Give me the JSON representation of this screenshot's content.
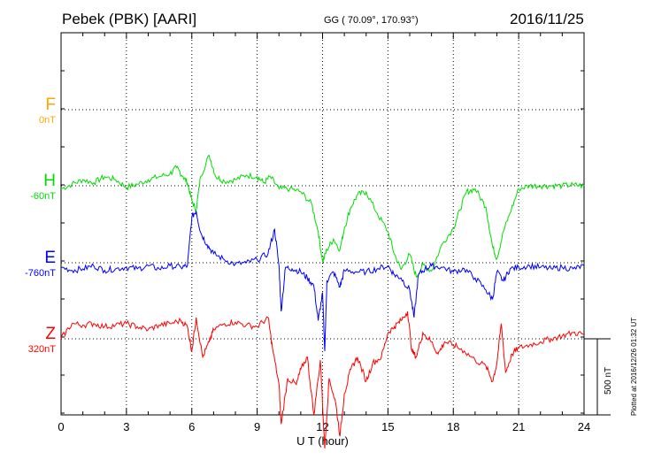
{
  "header": {
    "title": "Pebek (PBK)  [AARI]",
    "coords": "GG ( 70.09°, 170.93°)",
    "date": "2016/11/25"
  },
  "plotted": "Plotted at 2016/12/26 01:32 UT",
  "scale": {
    "label": "500 nT",
    "value": 500
  },
  "chart_data": {
    "type": "line",
    "xlabel": "U T (hour)",
    "xlim": [
      0,
      24
    ],
    "xticks": [
      "0",
      "3",
      "6",
      "9",
      "12",
      "15",
      "18",
      "21",
      "24"
    ],
    "grid": true,
    "series": [
      {
        "name": "F",
        "offset": "0nT",
        "color": "#ffa500",
        "values": []
      },
      {
        "name": "H",
        "offset": "-60nT",
        "color": "#00dd00",
        "values": [
          [
            0,
            -20
          ],
          [
            0.5,
            10
          ],
          [
            1,
            40
          ],
          [
            1.5,
            20
          ],
          [
            2,
            60
          ],
          [
            2.5,
            40
          ],
          [
            3,
            -10
          ],
          [
            3.5,
            10
          ],
          [
            4,
            40
          ],
          [
            4.5,
            60
          ],
          [
            5,
            80
          ],
          [
            5.3,
            120
          ],
          [
            5.6,
            60
          ],
          [
            5.8,
            20
          ],
          [
            6,
            -100
          ],
          [
            6.2,
            -160
          ],
          [
            6.4,
            60
          ],
          [
            6.8,
            200
          ],
          [
            7.1,
            60
          ],
          [
            7.5,
            30
          ],
          [
            8,
            40
          ],
          [
            8.5,
            70
          ],
          [
            9,
            60
          ],
          [
            9.3,
            20
          ],
          [
            9.6,
            60
          ],
          [
            10,
            -20
          ],
          [
            10.5,
            -20
          ],
          [
            11,
            -40
          ],
          [
            11.5,
            -120
          ],
          [
            11.8,
            -300
          ],
          [
            12,
            -500
          ],
          [
            12.2,
            -420
          ],
          [
            12.5,
            -350
          ],
          [
            12.8,
            -420
          ],
          [
            13,
            -280
          ],
          [
            13.3,
            -140
          ],
          [
            13.6,
            -60
          ],
          [
            14,
            -40
          ],
          [
            14.5,
            -180
          ],
          [
            15,
            -300
          ],
          [
            15.3,
            -450
          ],
          [
            15.6,
            -550
          ],
          [
            16,
            -450
          ],
          [
            16.3,
            -600
          ],
          [
            16.6,
            -520
          ],
          [
            17,
            -560
          ],
          [
            17.5,
            -380
          ],
          [
            18,
            -280
          ],
          [
            18.3,
            -160
          ],
          [
            18.6,
            -40
          ],
          [
            19,
            -20
          ],
          [
            19.5,
            -140
          ],
          [
            19.8,
            -400
          ],
          [
            20,
            -480
          ],
          [
            20.3,
            -300
          ],
          [
            20.6,
            -180
          ],
          [
            21,
            -20
          ],
          [
            21.5,
            0
          ],
          [
            22,
            0
          ],
          [
            22.5,
            0
          ],
          [
            23,
            0
          ],
          [
            23.5,
            5
          ],
          [
            24,
            0
          ]
        ]
      },
      {
        "name": "E",
        "offset": "-760nT",
        "color": "#0000ff",
        "values": [
          [
            0,
            -30
          ],
          [
            0.5,
            -50
          ],
          [
            1,
            -40
          ],
          [
            1.5,
            -20
          ],
          [
            2,
            -50
          ],
          [
            2.5,
            -40
          ],
          [
            3,
            -30
          ],
          [
            3.5,
            -40
          ],
          [
            4,
            -20
          ],
          [
            4.5,
            -40
          ],
          [
            5,
            -20
          ],
          [
            5.5,
            -30
          ],
          [
            5.8,
            -20
          ],
          [
            6,
            300
          ],
          [
            6.2,
            340
          ],
          [
            6.4,
            200
          ],
          [
            6.7,
            120
          ],
          [
            7,
            60
          ],
          [
            7.5,
            20
          ],
          [
            8,
            -10
          ],
          [
            8.5,
            0
          ],
          [
            9,
            20
          ],
          [
            9.5,
            60
          ],
          [
            9.8,
            220
          ],
          [
            10,
            -20
          ],
          [
            10.1,
            -320
          ],
          [
            10.3,
            -30
          ],
          [
            10.6,
            -40
          ],
          [
            11,
            -60
          ],
          [
            11.3,
            -100
          ],
          [
            11.6,
            -150
          ],
          [
            11.8,
            -380
          ],
          [
            12,
            -200
          ],
          [
            12.1,
            -580
          ],
          [
            12.2,
            -120
          ],
          [
            12.5,
            -60
          ],
          [
            12.8,
            -160
          ],
          [
            13,
            -50
          ],
          [
            13.5,
            -60
          ],
          [
            14,
            -60
          ],
          [
            14.5,
            -40
          ],
          [
            15,
            -20
          ],
          [
            15.3,
            -80
          ],
          [
            15.6,
            -100
          ],
          [
            16,
            -180
          ],
          [
            16.2,
            -360
          ],
          [
            16.4,
            -80
          ],
          [
            16.7,
            -40
          ],
          [
            17,
            -20
          ],
          [
            17.5,
            -30
          ],
          [
            18,
            -60
          ],
          [
            18.5,
            -40
          ],
          [
            19,
            -100
          ],
          [
            19.5,
            -180
          ],
          [
            19.8,
            -240
          ],
          [
            20,
            -60
          ],
          [
            20.3,
            -120
          ],
          [
            20.6,
            -40
          ],
          [
            21,
            -30
          ],
          [
            21.5,
            -20
          ],
          [
            22,
            -30
          ],
          [
            22.5,
            -40
          ],
          [
            23,
            -30
          ],
          [
            23.5,
            -40
          ],
          [
            24,
            -20
          ]
        ]
      },
      {
        "name": "Z",
        "offset": "320nT",
        "color": "#ff0000",
        "values": [
          [
            0,
            0
          ],
          [
            0.5,
            100
          ],
          [
            1,
            90
          ],
          [
            1.5,
            100
          ],
          [
            2,
            80
          ],
          [
            2.5,
            90
          ],
          [
            3,
            100
          ],
          [
            3.5,
            80
          ],
          [
            4,
            60
          ],
          [
            4.5,
            90
          ],
          [
            5,
            100
          ],
          [
            5.5,
            120
          ],
          [
            5.8,
            80
          ],
          [
            6,
            -80
          ],
          [
            6.2,
            140
          ],
          [
            6.5,
            -120
          ],
          [
            6.8,
            -20
          ],
          [
            7,
            60
          ],
          [
            7.5,
            100
          ],
          [
            8,
            110
          ],
          [
            8.5,
            90
          ],
          [
            9,
            80
          ],
          [
            9.5,
            140
          ],
          [
            9.7,
            -60
          ],
          [
            10,
            -300
          ],
          [
            10.1,
            -560
          ],
          [
            10.4,
            -260
          ],
          [
            10.8,
            -300
          ],
          [
            11,
            -200
          ],
          [
            11.3,
            -120
          ],
          [
            11.6,
            -500
          ],
          [
            11.9,
            -140
          ],
          [
            12.1,
            -720
          ],
          [
            12.3,
            -260
          ],
          [
            12.6,
            -420
          ],
          [
            12.8,
            -640
          ],
          [
            13,
            -360
          ],
          [
            13.3,
            -200
          ],
          [
            13.6,
            -120
          ],
          [
            14,
            -280
          ],
          [
            14.3,
            -160
          ],
          [
            14.7,
            -120
          ],
          [
            15,
            40
          ],
          [
            15.3,
            80
          ],
          [
            15.6,
            120
          ],
          [
            15.9,
            180
          ],
          [
            16.1,
            -80
          ],
          [
            16.3,
            -120
          ],
          [
            16.6,
            40
          ],
          [
            17,
            -20
          ],
          [
            17.3,
            -100
          ],
          [
            17.6,
            -20
          ],
          [
            18,
            -40
          ],
          [
            18.5,
            -80
          ],
          [
            19,
            -140
          ],
          [
            19.5,
            -180
          ],
          [
            19.8,
            -280
          ],
          [
            20,
            -160
          ],
          [
            20.2,
            100
          ],
          [
            20.4,
            -220
          ],
          [
            20.7,
            -100
          ],
          [
            21,
            -60
          ],
          [
            21.5,
            -40
          ],
          [
            22,
            -20
          ],
          [
            22.5,
            0
          ],
          [
            23,
            20
          ],
          [
            23.5,
            40
          ],
          [
            24,
            30
          ]
        ]
      }
    ]
  }
}
